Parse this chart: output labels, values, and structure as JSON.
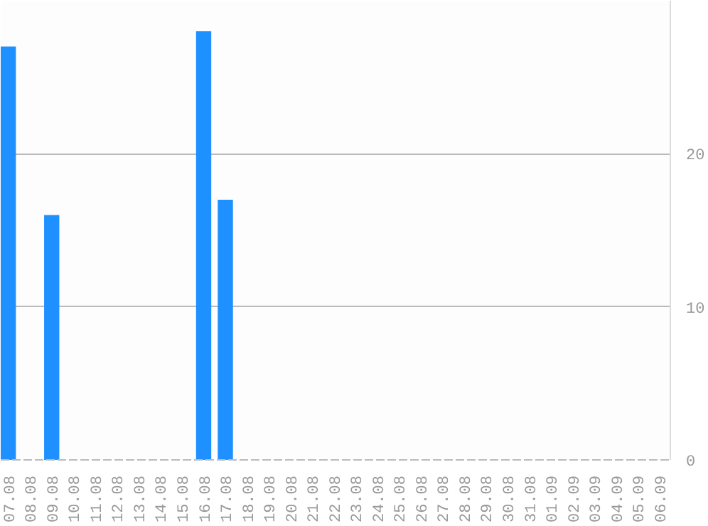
{
  "chart_data": {
    "type": "bar",
    "categories": [
      "07.08",
      "08.08",
      "09.08",
      "10.08",
      "11.08",
      "12.08",
      "13.08",
      "14.08",
      "15.08",
      "16.08",
      "17.08",
      "18.08",
      "19.08",
      "20.08",
      "21.08",
      "22.08",
      "23.08",
      "24.08",
      "25.08",
      "26.08",
      "27.08",
      "28.08",
      "29.08",
      "30.08",
      "31.08",
      "01.09",
      "02.09",
      "03.09",
      "04.09",
      "05.09",
      "06.09"
    ],
    "values": [
      27,
      0,
      16,
      0,
      0,
      0,
      0,
      0,
      0,
      28,
      17,
      0,
      0,
      0,
      0,
      0,
      0,
      0,
      0,
      0,
      0,
      0,
      0,
      0,
      0,
      0,
      0,
      0,
      0,
      0,
      0
    ],
    "color": "#1e90ff",
    "ylim": [
      0,
      30
    ],
    "yticks": [
      0,
      10,
      20
    ],
    "grid": "y"
  }
}
